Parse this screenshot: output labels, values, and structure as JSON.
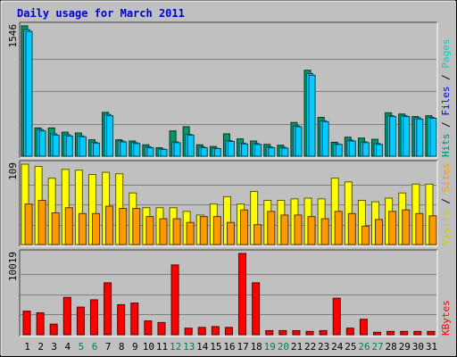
{
  "chart_data": {
    "type": "bar",
    "title": "Daily usage for March 2011",
    "categories": [
      "1",
      "2",
      "3",
      "4",
      "5",
      "6",
      "7",
      "8",
      "9",
      "10",
      "11",
      "12",
      "13",
      "14",
      "15",
      "16",
      "17",
      "18",
      "19",
      "20",
      "21",
      "22",
      "23",
      "24",
      "25",
      "26",
      "27",
      "28",
      "29",
      "30",
      "31"
    ],
    "weekend_days": [
      "5",
      "6",
      "12",
      "13",
      "19",
      "20",
      "26",
      "27"
    ],
    "colors": {
      "title": "#0000cc",
      "background": "#c0c0c0",
      "grid": "#808080",
      "hits": "#009966",
      "files": "#00ccff",
      "pages": "#00ccff",
      "visits": "#ffff00",
      "sites": "#ff9900",
      "kbytes": "#ff0000",
      "weekday_label": "#000000",
      "weekend_label": "#007f4f"
    },
    "panels": [
      {
        "id": "hits_files_pages",
        "max_label": "1546",
        "ylim": [
          0,
          1546
        ],
        "legend": [
          {
            "text": "Hits",
            "color": "#008080"
          },
          {
            "text": " / ",
            "color": "#000000"
          },
          {
            "text": "Files",
            "color": "#0000ff"
          },
          {
            "text": " / ",
            "color": "#000000"
          },
          {
            "text": "Pages",
            "color": "#00cccc"
          }
        ],
        "series": [
          {
            "name": "Hits",
            "color": "#009966",
            "values": [
              1546,
              335,
              335,
              285,
              275,
              195,
              520,
              195,
              180,
              135,
              100,
              300,
              350,
              135,
              115,
              265,
              205,
              180,
              140,
              130,
              400,
              1020,
              460,
              165,
              225,
              215,
              200,
              515,
              500,
              470,
              480
            ]
          },
          {
            "name": "Files",
            "color": "#00ccff",
            "values": [
              1500,
              315,
              265,
              255,
              240,
              165,
              495,
              180,
              160,
              110,
              85,
              170,
              260,
              110,
              95,
              185,
              155,
              150,
              110,
              105,
              360,
              980,
              420,
              145,
              190,
              170,
              150,
              480,
              480,
              455,
              460
            ]
          },
          {
            "name": "Pages",
            "color": "#00ccff",
            "values": [
              1480,
              300,
              250,
              240,
              230,
              155,
              480,
              170,
              150,
              100,
              80,
              160,
              250,
              100,
              90,
              175,
              145,
              140,
              100,
              95,
              350,
              960,
              410,
              140,
              180,
              160,
              140,
              470,
              470,
              440,
              450
            ]
          }
        ]
      },
      {
        "id": "visits_sites",
        "max_label": "109",
        "ylim": [
          0,
          109
        ],
        "legend": [
          {
            "text": "Visits",
            "color": "#cccc00"
          },
          {
            "text": " / ",
            "color": "#000000"
          },
          {
            "text": "Sites",
            "color": "#ff9900"
          }
        ],
        "series": [
          {
            "name": "Visits",
            "color": "#ffff00",
            "values": [
              109,
              106,
              90,
              102,
              101,
              95,
              98,
              96,
              70,
              50,
              50,
              50,
              45,
              40,
              55,
              65,
              55,
              72,
              60,
              60,
              62,
              63,
              62,
              90,
              85,
              60,
              58,
              63,
              70,
              82,
              82
            ]
          },
          {
            "name": "Sites",
            "color": "#ff9900",
            "values": [
              55,
              60,
              43,
              50,
              42,
              42,
              52,
              49,
              49,
              38,
              35,
              35,
              30,
              38,
              38,
              30,
              47,
              27,
              45,
              40,
              40,
              38,
              35,
              45,
              42,
              25,
              34,
              45,
              47,
              42,
              39
            ]
          }
        ]
      },
      {
        "id": "kbytes",
        "max_label": "10019",
        "ylim": [
          0,
          10019
        ],
        "legend": [
          {
            "text": "KBytes",
            "color": "#ff0000"
          }
        ],
        "series": [
          {
            "name": "KBytes",
            "color": "#ff0000",
            "values": [
              2900,
              2700,
              1300,
              4600,
              3400,
              4300,
              6400,
              3700,
              3900,
              1700,
              1500,
              8600,
              800,
              900,
              1000,
              900,
              10019,
              6400,
              500,
              500,
              500,
              400,
              500,
              4500,
              800,
              1900,
              300,
              400,
              400,
              400,
              400
            ]
          }
        ]
      }
    ]
  }
}
